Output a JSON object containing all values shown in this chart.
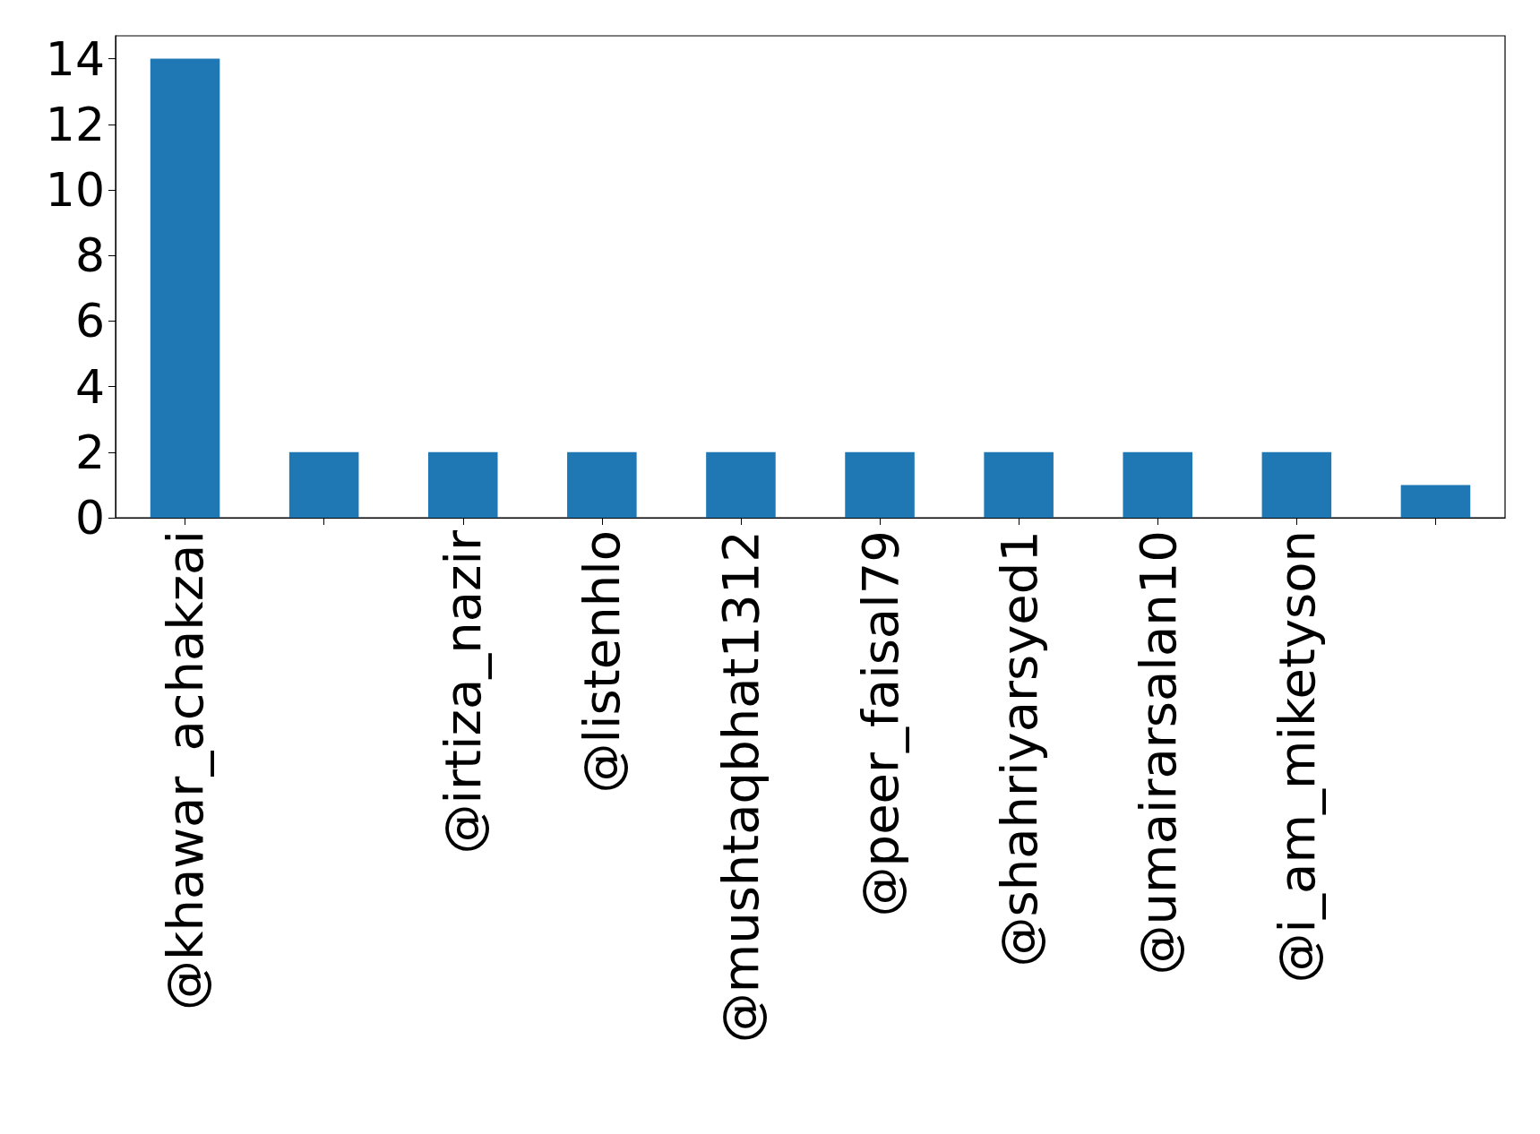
{
  "chart_data": {
    "type": "bar",
    "categories": [
      "@khawar_achakzai",
      null,
      "@irtiza_nazir",
      "@listenhlo",
      "@mushtaqbhat1312",
      "@peer_faisal79",
      "@shahriyarsyed1",
      "@umairarsalan10",
      "@i_am_miketyson",
      null
    ],
    "values": [
      14,
      2,
      2,
      2,
      2,
      2,
      2,
      2,
      2,
      1
    ],
    "color": "#1f77b4",
    "ylim": [
      0,
      14.7
    ],
    "yticks": [
      0,
      2,
      4,
      6,
      8,
      10,
      12,
      14
    ],
    "grid": false
  }
}
